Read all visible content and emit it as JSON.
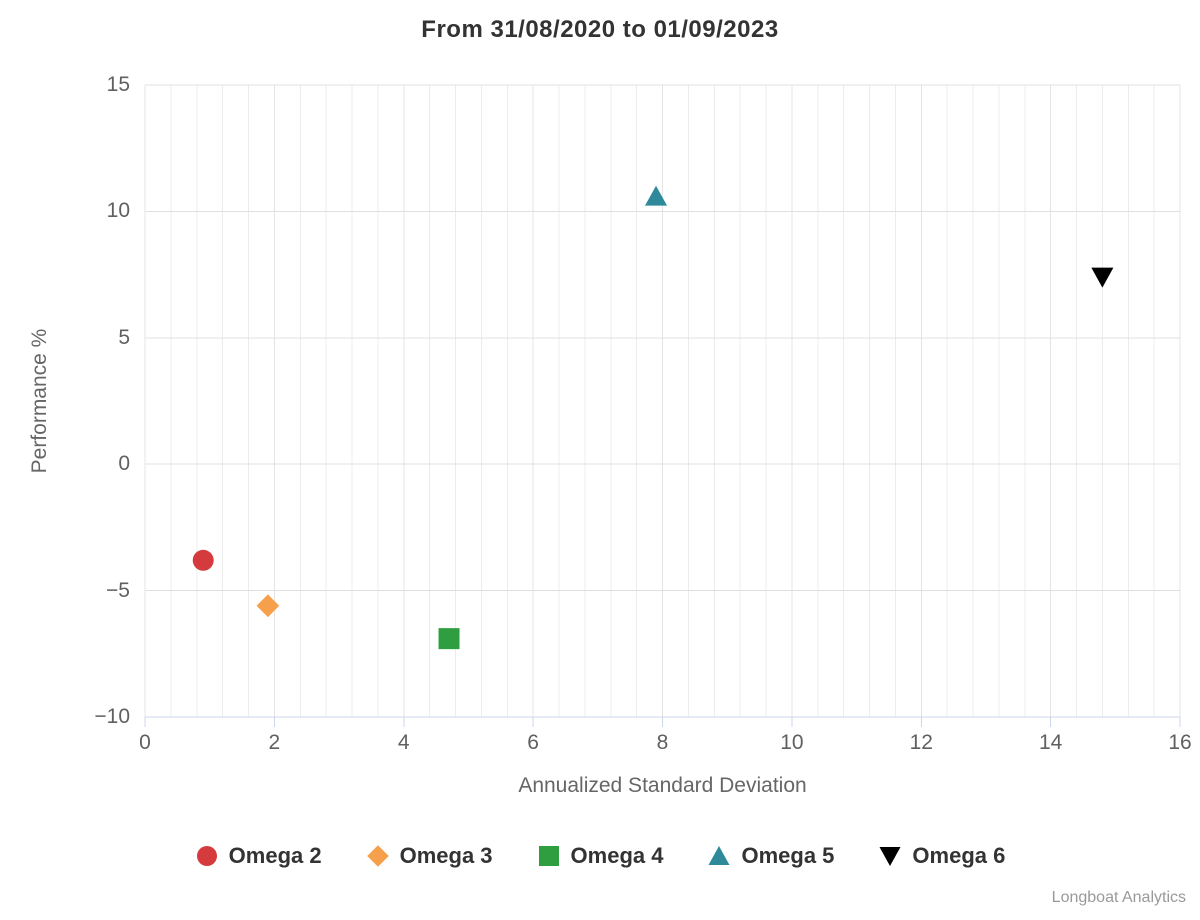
{
  "title": "From 31/08/2020 to 01/09/2023",
  "credits": "Longboat Analytics",
  "colors": {
    "title_text": "#333333",
    "tick_text": "#606060",
    "axis_title_text": "#666666",
    "legend_text": "#333333",
    "credits_text": "#999999",
    "axis_line": "#ccd6eb",
    "minor_gridline": "#ececec",
    "major_gridline": "#e4e4e4",
    "horizontal_gridline": "#e0e0e0"
  },
  "chart_data": {
    "type": "scatter",
    "title": "From 31/08/2020 to 01/09/2023",
    "xlabel": "Annualized Standard Deviation",
    "ylabel": "Performance %",
    "xlim": [
      0,
      16
    ],
    "ylim": [
      -10,
      15
    ],
    "x_ticks": [
      0,
      2,
      4,
      6,
      8,
      10,
      12,
      14,
      16
    ],
    "x_tick_labels": [
      "0",
      "2",
      "4",
      "6",
      "8",
      "10",
      "12",
      "14",
      "16"
    ],
    "x_minor_step": 0.4,
    "y_ticks": [
      15,
      10,
      5,
      0,
      -5,
      -10
    ],
    "y_tick_labels": [
      "15",
      "10",
      "5",
      "0",
      "−5",
      "−10"
    ],
    "grid": true,
    "legend_position": "bottom",
    "series": [
      {
        "name": "Omega 2",
        "marker": "circle",
        "color": "#d53b3d",
        "x": 0.9,
        "y": -3.8
      },
      {
        "name": "Omega 3",
        "marker": "diamond",
        "color": "#f7a04b",
        "x": 1.9,
        "y": -5.6
      },
      {
        "name": "Omega 4",
        "marker": "square",
        "color": "#2f9e41",
        "x": 4.7,
        "y": -6.9
      },
      {
        "name": "Omega 5",
        "marker": "triangle-up",
        "color": "#2e8a9b",
        "x": 7.9,
        "y": 10.6
      },
      {
        "name": "Omega 6",
        "marker": "triangle-down",
        "color": "#000000",
        "x": 14.8,
        "y": 7.4
      }
    ]
  }
}
